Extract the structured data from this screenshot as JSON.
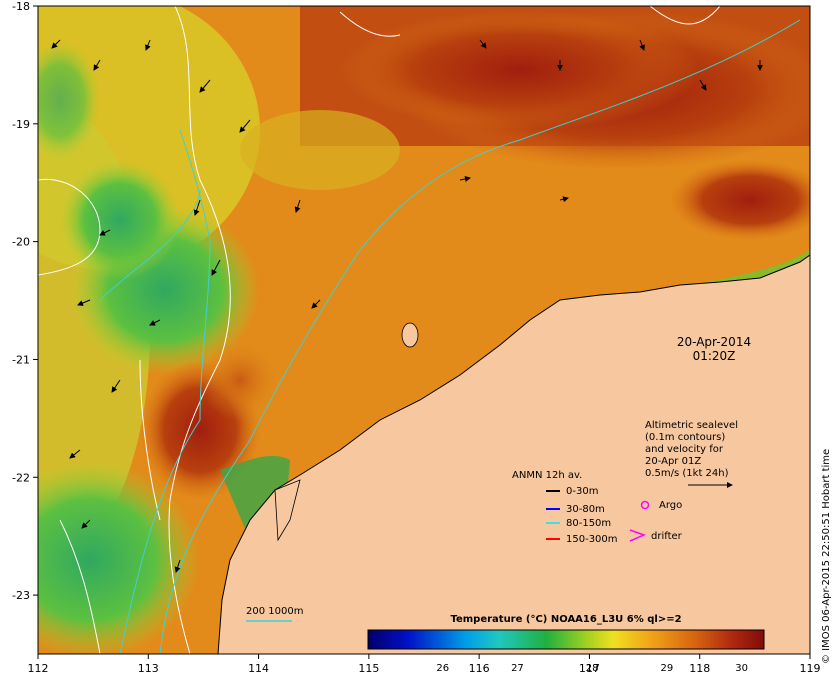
{
  "map": {
    "lon_ticks": [
      "112",
      "113",
      "114",
      "115",
      "116",
      "117",
      "118",
      "119"
    ],
    "lat_ticks": [
      "-18",
      "-19",
      "-20",
      "-21",
      "-22",
      "-23"
    ],
    "lon_range": [
      112,
      119
    ],
    "lat_range": [
      -23.5,
      -18
    ]
  },
  "date": {
    "line1": "20-Apr-2014",
    "line2": "01:20Z"
  },
  "altimetry_note": {
    "lines": [
      "Altimetric sealevel",
      "(0.1m contours)",
      "and velocity for",
      "20-Apr 01Z",
      "0.5m/s (1kt 24h)"
    ]
  },
  "anmn_legend": {
    "title": "ANMN 12h av.",
    "items": [
      {
        "label": "0-30m",
        "color": "#000000"
      },
      {
        "label": "30-80m",
        "color": "#0000ff"
      },
      {
        "label": "80-150m",
        "color": "#40e0e0"
      },
      {
        "label": "150-300m",
        "color": "#ff0000"
      }
    ]
  },
  "markers": {
    "argo": "Argo",
    "argo_color": "#ff00ff",
    "drifter": "drifter",
    "drifter_color": "#ff00ff"
  },
  "isobath": {
    "label": "200  1000m",
    "color": "#40d0d0"
  },
  "colorbar": {
    "title": "Temperature (°C) NOAA16_L3U 6% ql>=2",
    "ticks": [
      "26",
      "27",
      "28",
      "29",
      "30"
    ],
    "range": [
      25,
      30.3
    ]
  },
  "credit": "© IMOS 06-Apr-2015 22:50:51 Hobart time",
  "colors": {
    "land": "#f7c8a0",
    "cool": "#2ea84a",
    "warm": "#e68a1c",
    "hot": "#a81e10"
  }
}
